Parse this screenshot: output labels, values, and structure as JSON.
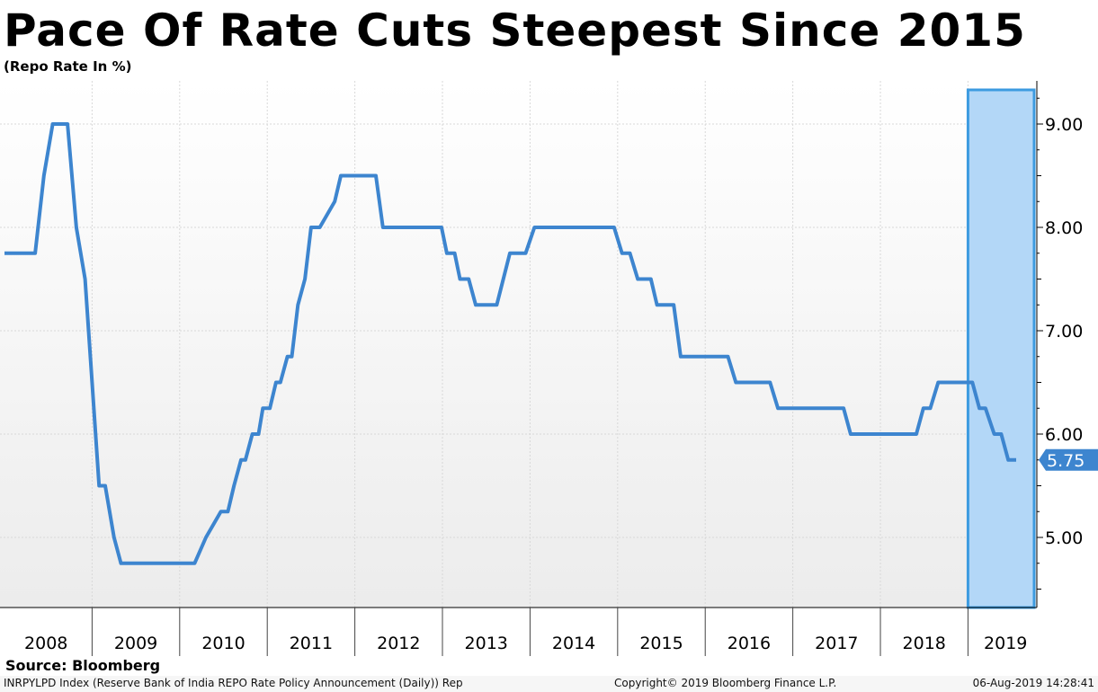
{
  "chart_data": {
    "type": "line",
    "title": "Pace Of Rate Cuts Steepest Since 2015",
    "subtitle": "(Repo Rate In %)",
    "ylabel": "Repo Rate In %",
    "ylim": [
      4.5,
      9.5
    ],
    "xlim": [
      2008.0,
      2019.55
    ],
    "y_ticks": [
      5.0,
      6.0,
      7.0,
      8.0,
      9.0
    ],
    "y_tick_labels": [
      "5.00",
      "6.00",
      "7.00",
      "8.00",
      "9.00"
    ],
    "x_tick_labels": [
      "2008",
      "2009",
      "2010",
      "2011",
      "2012",
      "2013",
      "2014",
      "2015",
      "2016",
      "2017",
      "2018",
      "2019"
    ],
    "grid": true,
    "last_value_label": "5.75",
    "highlight_range": [
      2019.0,
      2019.83
    ],
    "series": [
      {
        "name": "Repo Rate",
        "color": "#3d85cf",
        "x": [
          2008.0,
          2008.35,
          2008.45,
          2008.55,
          2008.72,
          2008.82,
          2008.92,
          2009.0,
          2009.08,
          2009.15,
          2009.25,
          2009.33,
          2010.17,
          2010.3,
          2010.47,
          2010.55,
          2010.62,
          2010.7,
          2010.75,
          2010.83,
          2010.9,
          2010.95,
          2011.03,
          2011.1,
          2011.15,
          2011.23,
          2011.28,
          2011.35,
          2011.43,
          2011.5,
          2011.6,
          2011.77,
          2011.84,
          2012.24,
          2012.32,
          2012.99,
          2013.05,
          2013.14,
          2013.2,
          2013.3,
          2013.38,
          2013.62,
          2013.77,
          2013.95,
          2014.05,
          2014.96,
          2015.05,
          2015.14,
          2015.23,
          2015.38,
          2015.45,
          2015.64,
          2015.72,
          2016.26,
          2016.35,
          2016.74,
          2016.83,
          2017.58,
          2017.66,
          2018.41,
          2018.49,
          2018.57,
          2018.66,
          2019.05,
          2019.13,
          2019.2,
          2019.3,
          2019.38,
          2019.46,
          2019.55
        ],
        "y": [
          7.75,
          7.75,
          8.5,
          9.0,
          9.0,
          8.0,
          7.5,
          6.5,
          5.5,
          5.5,
          5.0,
          4.75,
          4.75,
          5.0,
          5.25,
          5.25,
          5.5,
          5.75,
          5.75,
          6.0,
          6.0,
          6.25,
          6.25,
          6.5,
          6.5,
          6.75,
          6.75,
          7.25,
          7.5,
          8.0,
          8.0,
          8.25,
          8.5,
          8.5,
          8.0,
          8.0,
          7.75,
          7.75,
          7.5,
          7.5,
          7.25,
          7.25,
          7.75,
          7.75,
          8.0,
          8.0,
          7.75,
          7.75,
          7.5,
          7.5,
          7.25,
          7.25,
          6.75,
          6.75,
          6.5,
          6.5,
          6.25,
          6.25,
          6.0,
          6.0,
          6.25,
          6.25,
          6.5,
          6.5,
          6.25,
          6.25,
          6.0,
          6.0,
          5.75,
          5.75
        ]
      }
    ]
  },
  "source_label": "Source: Bloomberg",
  "footer": {
    "index_text": "INRPYLPD Index (Reserve Bank of India REPO Rate Policy Announcement (Daily)) Rep",
    "copyright": "Copyright© 2019 Bloomberg Finance L.P.",
    "timestamp": "06-Aug-2019 14:28:41"
  },
  "colors": {
    "line": "#3d85cf",
    "highlight_fill": "#b3d7f7",
    "highlight_stroke": "#3d9be0",
    "grid": "#d8d8d8",
    "plot_bg_top": "#ffffff",
    "plot_bg_bottom": "#ececec"
  }
}
